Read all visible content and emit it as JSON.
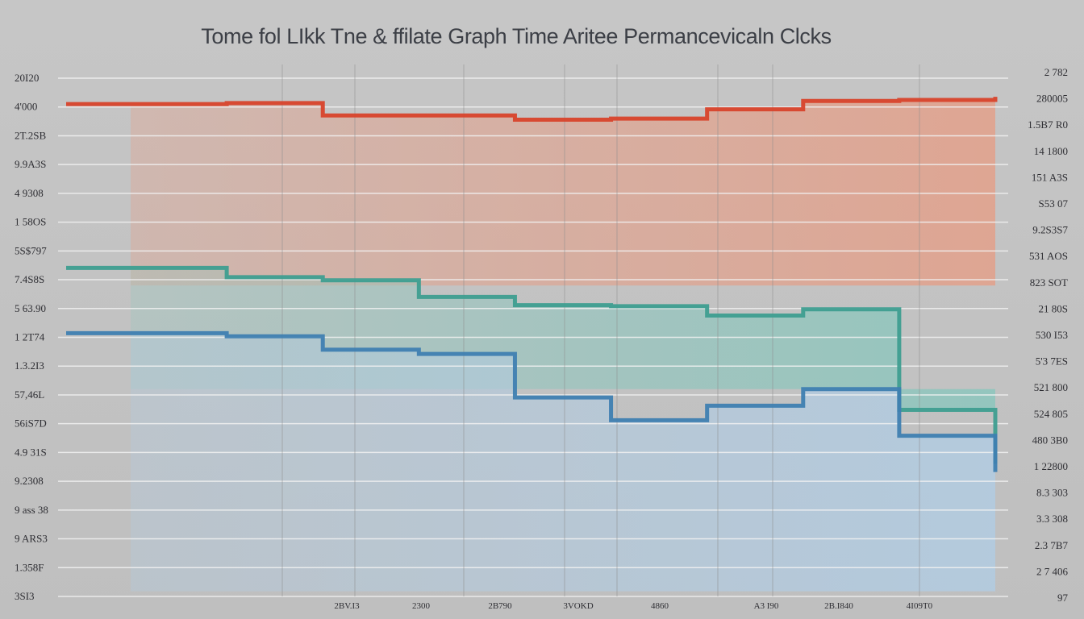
{
  "chart_data": {
    "type": "line",
    "title": "Tome fol LIkk Tne  & ffilate Graph Time  Aritee Permancevicaln Clcks",
    "y_labels_left": [
      "20I20",
      "4'000",
      "2T.2SB",
      "9.9A3S",
      "4 9308",
      "1 58OS",
      "5S$797",
      "7.4S8S",
      "5 63.90",
      "1 2T74",
      "1.3.2I3",
      "57,46L",
      "56iS7D",
      "4.9 31S",
      "9.2308",
      "9 ass 38",
      "9 ARS3",
      "1.358F",
      "3SI3"
    ],
    "y_labels_right": [
      "2 782",
      "280005",
      "1.5B7 R0",
      "14 1800",
      "151 A3S",
      "S53 07",
      "9.2S3S7",
      "531 AOS",
      "823 SOT",
      "21 80S",
      "530 I53",
      "5'3 7ES",
      "521 800",
      "524 805",
      "480 3B0",
      "1 22800",
      "8.3 303",
      "3.3 308",
      "2.3 7B7",
      "2 7 406",
      "97"
    ],
    "x_labels": [
      "2BV.I3",
      "2300",
      "2B790",
      "3VOKD",
      "4860",
      "A3 I90",
      "2B.I840",
      "4I09T0"
    ],
    "grid": true,
    "legend": "none",
    "colors": {
      "red": "#d8432b",
      "red_fill": "#e3a08a",
      "teal": "#3e9e90",
      "teal_fill": "#8cc6bd",
      "blue": "#3f7fb1",
      "blue_fill": "#b2cbe0",
      "gridline": "#f2f2f2"
    },
    "series": [
      {
        "color_key": "red",
        "x": [
          0,
          1,
          2,
          3,
          4,
          5,
          6,
          7,
          8,
          9
        ],
        "y": [
          95.0,
          95.2,
          92.8,
          92.8,
          92.0,
          92.2,
          94.0,
          95.6,
          95.8,
          96.4
        ]
      },
      {
        "color_key": "teal",
        "x": [
          0,
          1,
          2,
          3,
          4,
          5,
          6,
          7,
          8,
          9
        ],
        "y": [
          63.4,
          61.6,
          61.0,
          57.8,
          56.2,
          56.0,
          54.2,
          55.4,
          36.0,
          25.6
        ]
      },
      {
        "color_key": "blue",
        "x": [
          0,
          1,
          2,
          3,
          4,
          5,
          6,
          7,
          8,
          9
        ],
        "y": [
          50.8,
          50.2,
          47.6,
          46.8,
          38.4,
          34.0,
          36.8,
          40.0,
          31.0,
          24.0
        ]
      }
    ]
  }
}
